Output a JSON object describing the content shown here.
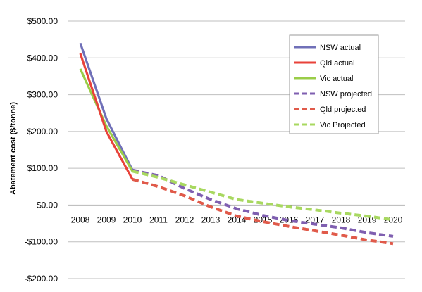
{
  "chart_data": {
    "type": "line",
    "title": "",
    "xlabel": "",
    "ylabel": "Abatement cost ($/tonne)",
    "x": [
      "2008",
      "2009",
      "2010",
      "2011",
      "2012",
      "2013",
      "2014",
      "2015",
      "2016",
      "2017",
      "2018",
      "2019",
      "2020"
    ],
    "ylim": [
      -200,
      500
    ],
    "yticks": [
      500,
      400,
      300,
      200,
      100,
      0,
      -100,
      -200
    ],
    "ytick_labels": [
      "$500.00",
      "$400.00",
      "$300.00",
      "$200.00",
      "$100.00",
      "$0.00",
      "-$100.00",
      "-$200.00"
    ],
    "grid": true,
    "legend_position": "top-right",
    "series": [
      {
        "name": "NSW actual",
        "color": "#7070b8",
        "style": "solid",
        "values": [
          440,
          235,
          95,
          null,
          null,
          null,
          null,
          null,
          null,
          null,
          null,
          null,
          null
        ]
      },
      {
        "name": "Qld actual",
        "color": "#e8423a",
        "style": "solid",
        "values": [
          412,
          200,
          70,
          null,
          null,
          null,
          null,
          null,
          null,
          null,
          null,
          null,
          null
        ]
      },
      {
        "name": "Vic actual",
        "color": "#9acd48",
        "style": "solid",
        "values": [
          370,
          215,
          92,
          null,
          null,
          null,
          null,
          null,
          null,
          null,
          null,
          null,
          null
        ]
      },
      {
        "name": "NSW projected",
        "color": "#7f5fb0",
        "style": "dashed",
        "values": [
          null,
          null,
          95,
          80,
          45,
          15,
          -10,
          -28,
          -42,
          -52,
          -62,
          -75,
          -85
        ]
      },
      {
        "name": "Qld projected",
        "color": "#e05a4a",
        "style": "dashed",
        "values": [
          null,
          null,
          70,
          50,
          25,
          -5,
          -30,
          -45,
          -58,
          -70,
          -82,
          -95,
          -105
        ]
      },
      {
        "name": "Vic Projected",
        "color": "#a8d860",
        "style": "dashed",
        "values": [
          null,
          null,
          92,
          75,
          55,
          35,
          15,
          5,
          -5,
          -13,
          -22,
          -30,
          -40
        ]
      }
    ]
  }
}
